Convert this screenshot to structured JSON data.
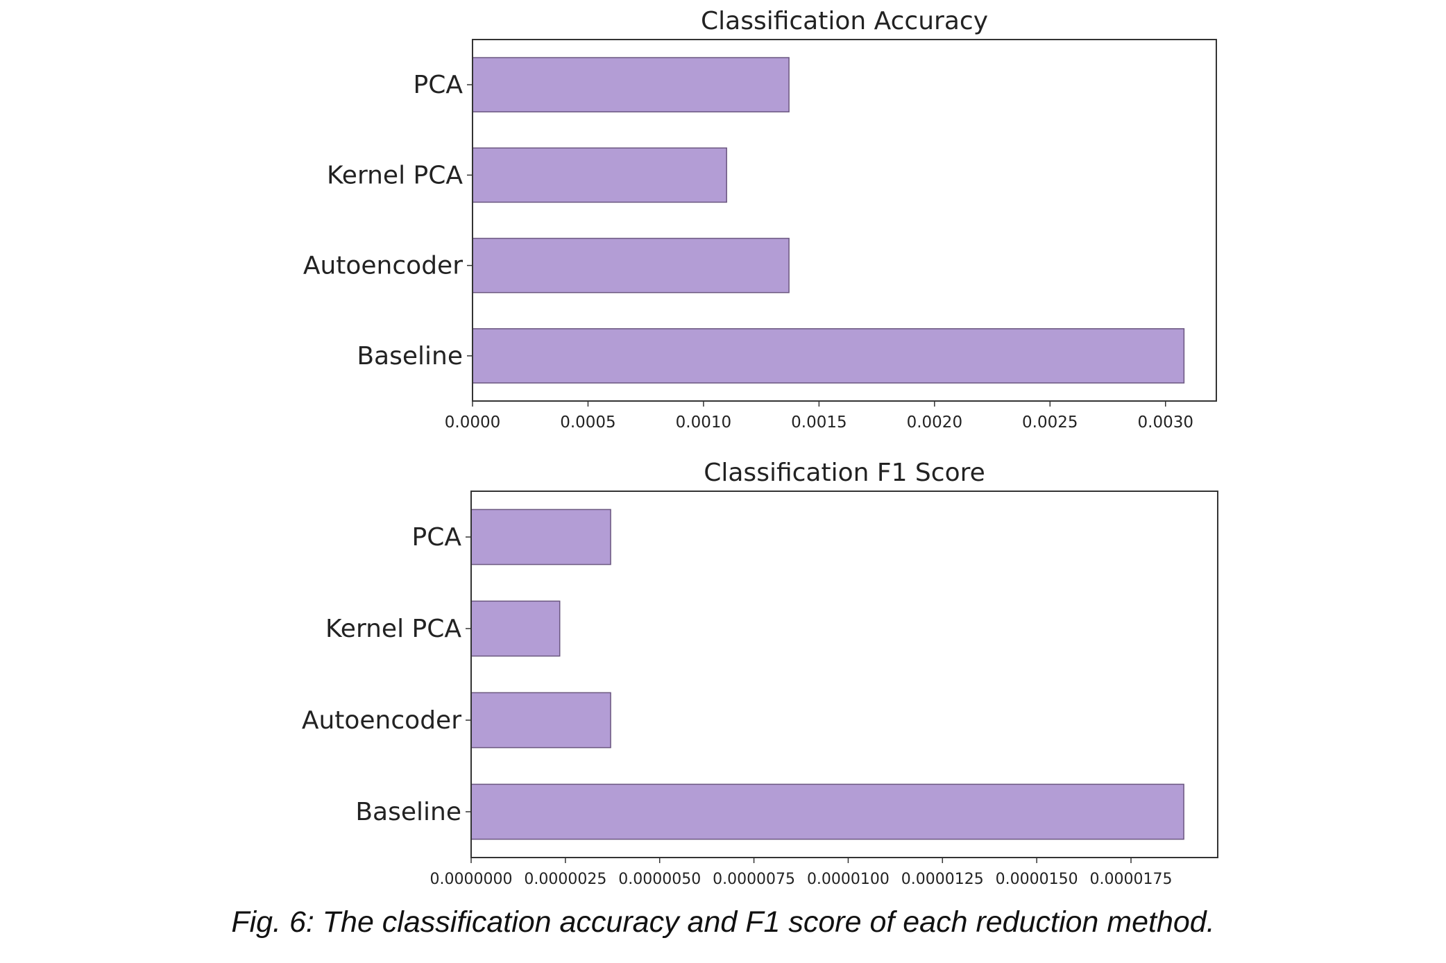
{
  "caption": "Fig. 6: The classification accuracy and F1 score of each reduction method.",
  "colors": {
    "bar_fill": "#b39dd5",
    "bar_edge": "#6a567f",
    "axis": "#333333",
    "text": "#222222"
  },
  "chart_data": [
    {
      "type": "bar",
      "orientation": "horizontal",
      "title": "Classification Accuracy",
      "categories": [
        "PCA",
        "Kernel PCA",
        "Autoencoder",
        "Baseline"
      ],
      "values": [
        0.00137,
        0.0011,
        0.00137,
        0.00308
      ],
      "xlim": [
        0,
        0.00322
      ],
      "xticks": [
        0,
        0.0005,
        0.001,
        0.0015,
        0.002,
        0.0025,
        0.003
      ],
      "xtick_labels": [
        "0.0000",
        "0.0005",
        "0.0010",
        "0.0015",
        "0.0020",
        "0.0025",
        "0.0030"
      ],
      "grid": false
    },
    {
      "type": "bar",
      "orientation": "horizontal",
      "title": "Classification F1 Score",
      "categories": [
        "PCA",
        "Kernel PCA",
        "Autoencoder",
        "Baseline"
      ],
      "values": [
        3.7e-06,
        2.35e-06,
        3.7e-06,
        1.89e-05
      ],
      "xlim": [
        0,
        1.98e-05
      ],
      "xticks": [
        0,
        2.5e-06,
        5e-06,
        7.5e-06,
        1e-05,
        1.25e-05,
        1.5e-05,
        1.75e-05
      ],
      "xtick_labels": [
        "0.0000000",
        "0.0000025",
        "0.0000050",
        "0.0000075",
        "0.0000100",
        "0.0000125",
        "0.0000150",
        "0.0000175"
      ],
      "grid": false
    }
  ]
}
